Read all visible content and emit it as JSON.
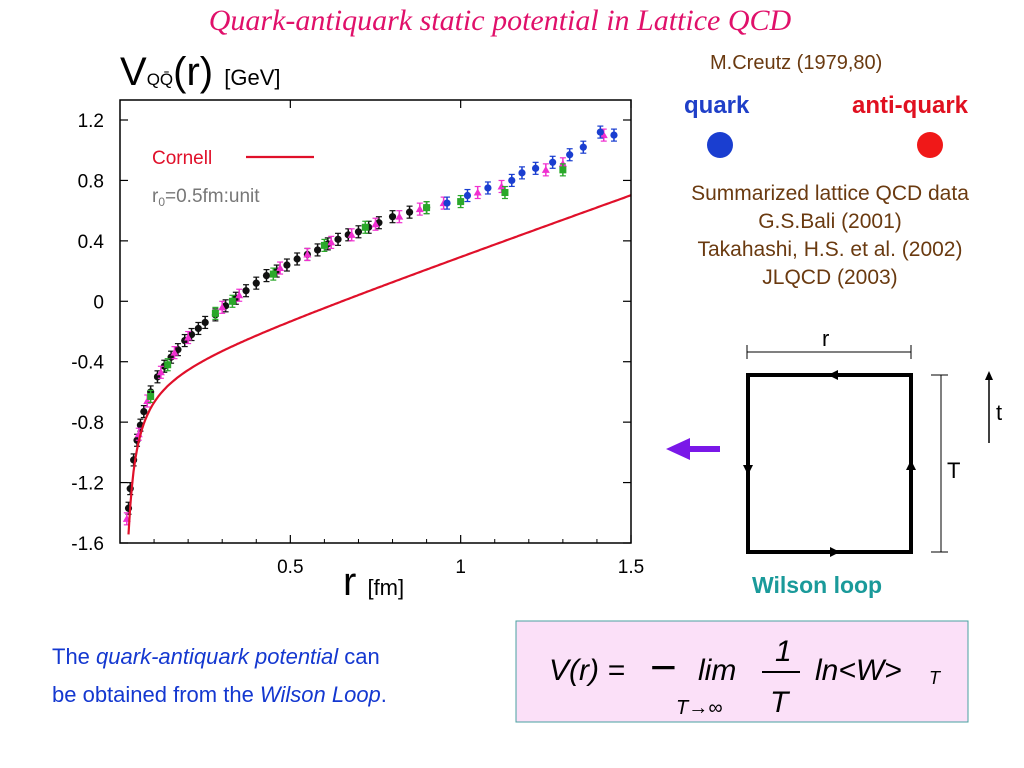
{
  "slide": {
    "title": "Quark-antiquark static potential in Lattice QCD",
    "creutz": "M.Creutz (1979,80)",
    "quark_label": "quark",
    "antiquark_label": "anti-quark",
    "refs": [
      "Summarized lattice QCD data",
      "G.S.Bali (2001)",
      "Takahashi, H.S. et al. (2002)",
      "JLQCD (2003)"
    ],
    "wilson_caption": "Wilson loop",
    "wilson_r": "r",
    "wilson_T": "T",
    "wilson_t": "t",
    "bottom_text": {
      "part1": "The ",
      "italic1": "quark-antiquark potential",
      "part2": " can",
      "line2a": "be obtained from the ",
      "italic2": "Wilson Loop",
      "part3": "."
    },
    "formula": {
      "lhs": "V(r) =",
      "minus": "−",
      "lim": "lim",
      "lim_sub": "T→∞",
      "numerator": "1",
      "denominator": "T",
      "ln": "ln<W>",
      "ln_sub": "T"
    },
    "colors": {
      "title": "#e0106a",
      "quark": "#1a3ed0",
      "antiquark": "#f01818",
      "cornell": "#e0102a",
      "arrow": "#7a18e8",
      "wilson_caption": "#1a9a9a",
      "bottom_text": "#1438d0",
      "formula_bg": "#fbe0f8"
    }
  },
  "chart_data": {
    "type": "scatter",
    "ylabel_main": "V",
    "ylabel_sub": "QQ̄",
    "ylabel_arg": "(r)",
    "ylabel_unit": "[GeV]",
    "xlabel_main": "r",
    "xlabel_unit": "[fm]",
    "xlim": [
      0,
      1.5
    ],
    "ylim": [
      -1.6,
      1.3
    ],
    "x_ticks": [
      0.5,
      1,
      1.5
    ],
    "x_tick_labels": [
      "0.5",
      "1",
      "1.5"
    ],
    "y_ticks": [
      1.2,
      0.8,
      0.4,
      0,
      -0.4,
      -0.8,
      -1.2,
      -1.6
    ],
    "y_tick_labels": [
      "1.2",
      "0.8",
      "0.4",
      "0",
      "-0.4",
      "-0.8",
      "-1.2",
      "-1.6"
    ],
    "legend": {
      "entries": [
        "Cornell"
      ],
      "position": "top-left"
    },
    "annotation": {
      "r0": "r",
      "r0_sub": "0",
      "r0_rest": "=0.5fm:unit"
    },
    "cornell": {
      "name": "Cornell",
      "A": 0.27,
      "sigma": 1.0,
      "c": -0.48,
      "x_range": [
        0.02,
        1.5
      ]
    },
    "series": [
      {
        "color": "#111111",
        "x": [
          0.025,
          0.03,
          0.04,
          0.05,
          0.06,
          0.07,
          0.09,
          0.11,
          0.13,
          0.15,
          0.17,
          0.19,
          0.21,
          0.23,
          0.25,
          0.28,
          0.31,
          0.34,
          0.37,
          0.4,
          0.43,
          0.46,
          0.49,
          0.52,
          0.55,
          0.58,
          0.61,
          0.64,
          0.67,
          0.7,
          0.73,
          0.76,
          0.8,
          0.85,
          0.9
        ],
        "y": [
          -1.37,
          -1.24,
          -1.05,
          -0.92,
          -0.82,
          -0.73,
          -0.6,
          -0.5,
          -0.43,
          -0.37,
          -0.32,
          -0.26,
          -0.22,
          -0.18,
          -0.14,
          -0.09,
          -0.03,
          0.02,
          0.07,
          0.12,
          0.17,
          0.2,
          0.24,
          0.28,
          0.31,
          0.34,
          0.38,
          0.41,
          0.44,
          0.46,
          0.49,
          0.52,
          0.56,
          0.59,
          0.62
        ]
      },
      {
        "color": "#f030d0",
        "x": [
          0.02,
          0.055,
          0.08,
          0.12,
          0.16,
          0.2,
          0.3,
          0.35,
          0.47,
          0.55,
          0.62,
          0.68,
          0.75,
          0.82,
          0.88,
          0.95,
          1.05,
          1.12,
          1.25,
          1.3,
          1.42
        ],
        "y": [
          -1.44,
          -0.88,
          -0.66,
          -0.47,
          -0.34,
          -0.24,
          -0.04,
          0.04,
          0.22,
          0.31,
          0.39,
          0.44,
          0.51,
          0.56,
          0.61,
          0.65,
          0.72,
          0.76,
          0.87,
          0.91,
          1.1
        ]
      },
      {
        "color": "#2aa82a",
        "x": [
          0.09,
          0.14,
          0.28,
          0.33,
          0.45,
          0.6,
          0.72,
          0.9,
          1.0,
          1.13,
          1.3
        ],
        "y": [
          -0.63,
          -0.42,
          -0.08,
          0.0,
          0.18,
          0.37,
          0.49,
          0.62,
          0.66,
          0.72,
          0.87
        ]
      },
      {
        "color": "#1a3ed0",
        "x": [
          0.96,
          1.02,
          1.08,
          1.15,
          1.18,
          1.22,
          1.27,
          1.32,
          1.36,
          1.41,
          1.45
        ],
        "y": [
          0.65,
          0.7,
          0.75,
          0.8,
          0.85,
          0.88,
          0.92,
          0.97,
          1.02,
          1.12,
          1.1
        ]
      }
    ]
  }
}
